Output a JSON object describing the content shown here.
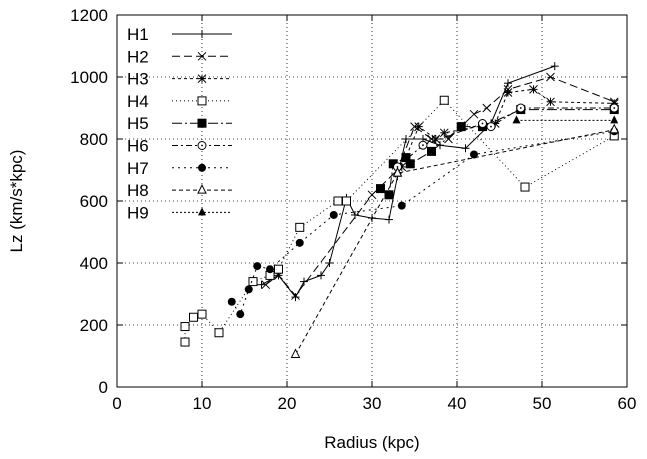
{
  "chart_data": {
    "type": "line",
    "title": "",
    "xlabel": "Radius (kpc)",
    "ylabel": "Lz (km/s*kpc)",
    "xlim": [
      0,
      60
    ],
    "ylim": [
      0,
      1200
    ],
    "xticks": [
      0,
      10,
      20,
      30,
      40,
      50,
      60
    ],
    "yticks": [
      0,
      200,
      400,
      600,
      800,
      1000,
      1200
    ],
    "grid": true,
    "legend_position": "top-left",
    "series": [
      {
        "name": "H1",
        "marker": "plus",
        "dash": "",
        "points": [
          [
            17,
            330
          ],
          [
            19,
            360
          ],
          [
            21,
            290
          ],
          [
            22,
            340
          ],
          [
            24,
            360
          ],
          [
            25,
            400
          ],
          [
            27,
            610
          ],
          [
            28,
            555
          ],
          [
            30,
            545
          ],
          [
            32,
            540
          ],
          [
            33,
            680
          ],
          [
            34,
            800
          ],
          [
            36,
            800
          ],
          [
            38,
            780
          ],
          [
            41,
            770
          ],
          [
            44,
            850
          ],
          [
            46,
            980
          ],
          [
            51.5,
            1035
          ]
        ]
      },
      {
        "name": "H2",
        "marker": "x",
        "dash": "8,4",
        "points": [
          [
            17.5,
            330
          ],
          [
            19,
            360
          ],
          [
            21,
            295
          ],
          [
            30,
            620
          ],
          [
            33,
            700
          ],
          [
            35,
            840
          ],
          [
            37,
            800
          ],
          [
            39,
            800
          ],
          [
            42,
            880
          ],
          [
            43.5,
            900
          ],
          [
            46,
            960
          ],
          [
            51,
            1000
          ],
          [
            58.5,
            920
          ]
        ]
      },
      {
        "name": "H3",
        "marker": "star",
        "dash": "3,3",
        "points": [
          [
            33.5,
            710
          ],
          [
            35.5,
            840
          ],
          [
            37.5,
            800
          ],
          [
            38.5,
            820
          ],
          [
            44.5,
            850
          ],
          [
            46,
            950
          ],
          [
            49,
            960
          ],
          [
            51,
            920
          ],
          [
            58.5,
            915
          ]
        ]
      },
      {
        "name": "H4",
        "marker": "square-open",
        "dash": "1,3",
        "points": [
          [
            8,
            145
          ],
          [
            8,
            195
          ],
          [
            9,
            225
          ],
          [
            10,
            235
          ],
          [
            12,
            175
          ],
          [
            16,
            340
          ],
          [
            18,
            360
          ],
          [
            19,
            380
          ],
          [
            21.5,
            515
          ],
          [
            26,
            600
          ],
          [
            27,
            600
          ],
          [
            38.5,
            925
          ],
          [
            48,
            645
          ],
          [
            58.5,
            810
          ]
        ]
      },
      {
        "name": "H5",
        "marker": "square-filled",
        "dash": "10,3,2,3",
        "points": [
          [
            31,
            640
          ],
          [
            32,
            620
          ],
          [
            32.5,
            720
          ],
          [
            34,
            740
          ],
          [
            34.5,
            720
          ],
          [
            37,
            760
          ],
          [
            40.5,
            840
          ],
          [
            43,
            840
          ],
          [
            47.5,
            895
          ],
          [
            58.5,
            895
          ]
        ]
      },
      {
        "name": "H6",
        "marker": "circle-open",
        "dash": "6,3,2,3",
        "points": [
          [
            33,
            710
          ],
          [
            36,
            780
          ],
          [
            43,
            850
          ],
          [
            44,
            840
          ],
          [
            47.5,
            900
          ],
          [
            58.5,
            900
          ]
        ]
      },
      {
        "name": "H7",
        "marker": "circle-filled",
        "dash": "2,4",
        "points": [
          [
            13.5,
            275
          ],
          [
            14.5,
            235
          ],
          [
            15.5,
            315
          ],
          [
            16.5,
            390
          ],
          [
            18,
            380
          ],
          [
            21.5,
            465
          ],
          [
            25.5,
            555
          ],
          [
            33.5,
            585
          ],
          [
            42,
            750
          ],
          [
            58.5,
            825
          ]
        ]
      },
      {
        "name": "H8",
        "marker": "triangle-open",
        "dash": "4,3",
        "points": [
          [
            21,
            105
          ],
          [
            33,
            690
          ],
          [
            58.5,
            830
          ]
        ]
      },
      {
        "name": "H9",
        "marker": "triangle-filled",
        "dash": "2,2",
        "points": [
          [
            47,
            860
          ],
          [
            58.5,
            860
          ]
        ]
      }
    ]
  }
}
